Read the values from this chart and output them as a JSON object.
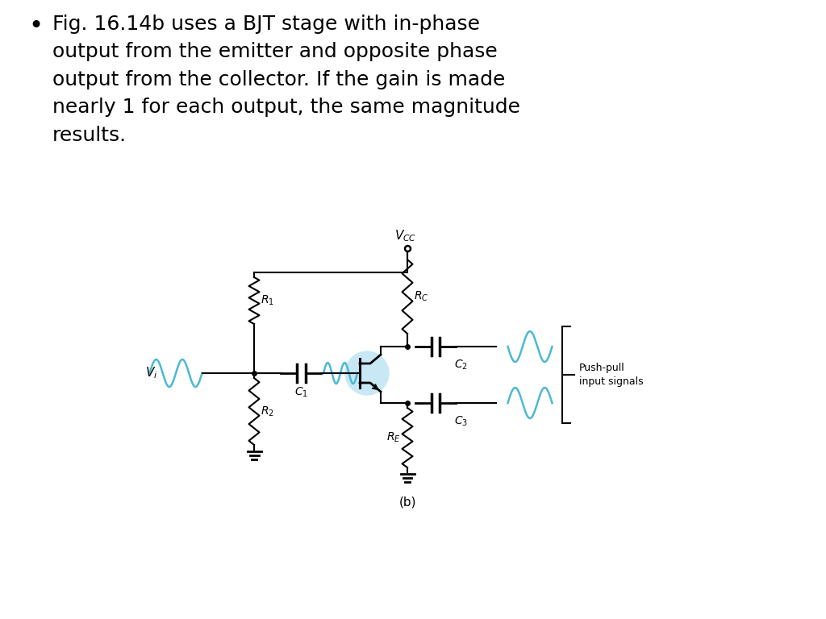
{
  "background_color": "#ffffff",
  "line_color": "#000000",
  "wave_color": "#4db8d4",
  "bjt_fill": "#c8e8f5",
  "text_color": "#000000",
  "push_pull_label": "Push-pull\ninput signals",
  "vcc_label": "$V_{CC}$",
  "rc_label": "$R_C$",
  "r1_label": "$R_1$",
  "r2_label": "$R_2$",
  "re_label": "$R_E$",
  "c1_label": "$C_1$",
  "c2_label": "$C_2$",
  "c3_label": "$C_3$",
  "vi_label": "$V_i$",
  "sub_label": "(b)",
  "bullet_text": "Fig. 16.14b uses a BJT stage with in-phase\noutput from the emitter and opposite phase\noutput from the collector. If the gain is made\nnearly 1 for each output, the same magnitude\nresults."
}
